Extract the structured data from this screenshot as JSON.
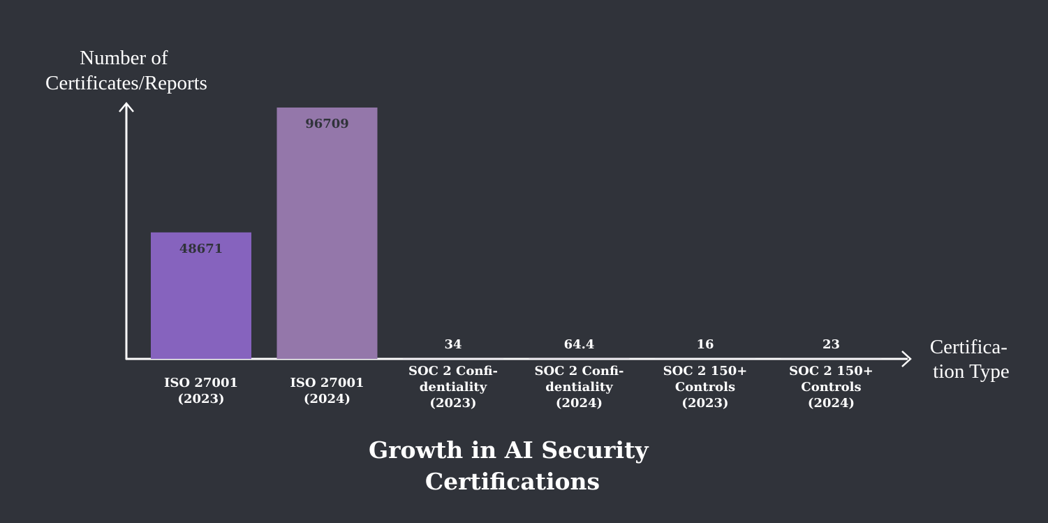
{
  "chart_data": {
    "type": "bar",
    "title": "Growth in AI Security Certifications",
    "xlabel": "Certification Type",
    "ylabel": "Number of Certificates/Reports",
    "categories": [
      "ISO 27001 (2023)",
      "ISO 27001 (2024)",
      "SOC 2 Confidentiality (2023)",
      "SOC 2 Confidentiality (2024)",
      "SOC 2 150+ Controls (2023)",
      "SOC 2 150+ Controls (2024)"
    ],
    "values": [
      48671,
      96709,
      34,
      64.4,
      16,
      23
    ],
    "value_labels": [
      "48671",
      "96709",
      "34",
      "64.4",
      "16",
      "23"
    ],
    "ylim": [
      0,
      96709
    ],
    "grid": false,
    "legend": "none",
    "colors": {
      "background": "#30333a",
      "bars": [
        "#8663be",
        "#9477aa",
        "#8663be",
        "#9477aa",
        "#8663be",
        "#9477aa"
      ],
      "axis": "#ffffff",
      "text": "#ffffff",
      "label_inside": "#30333a"
    }
  }
}
